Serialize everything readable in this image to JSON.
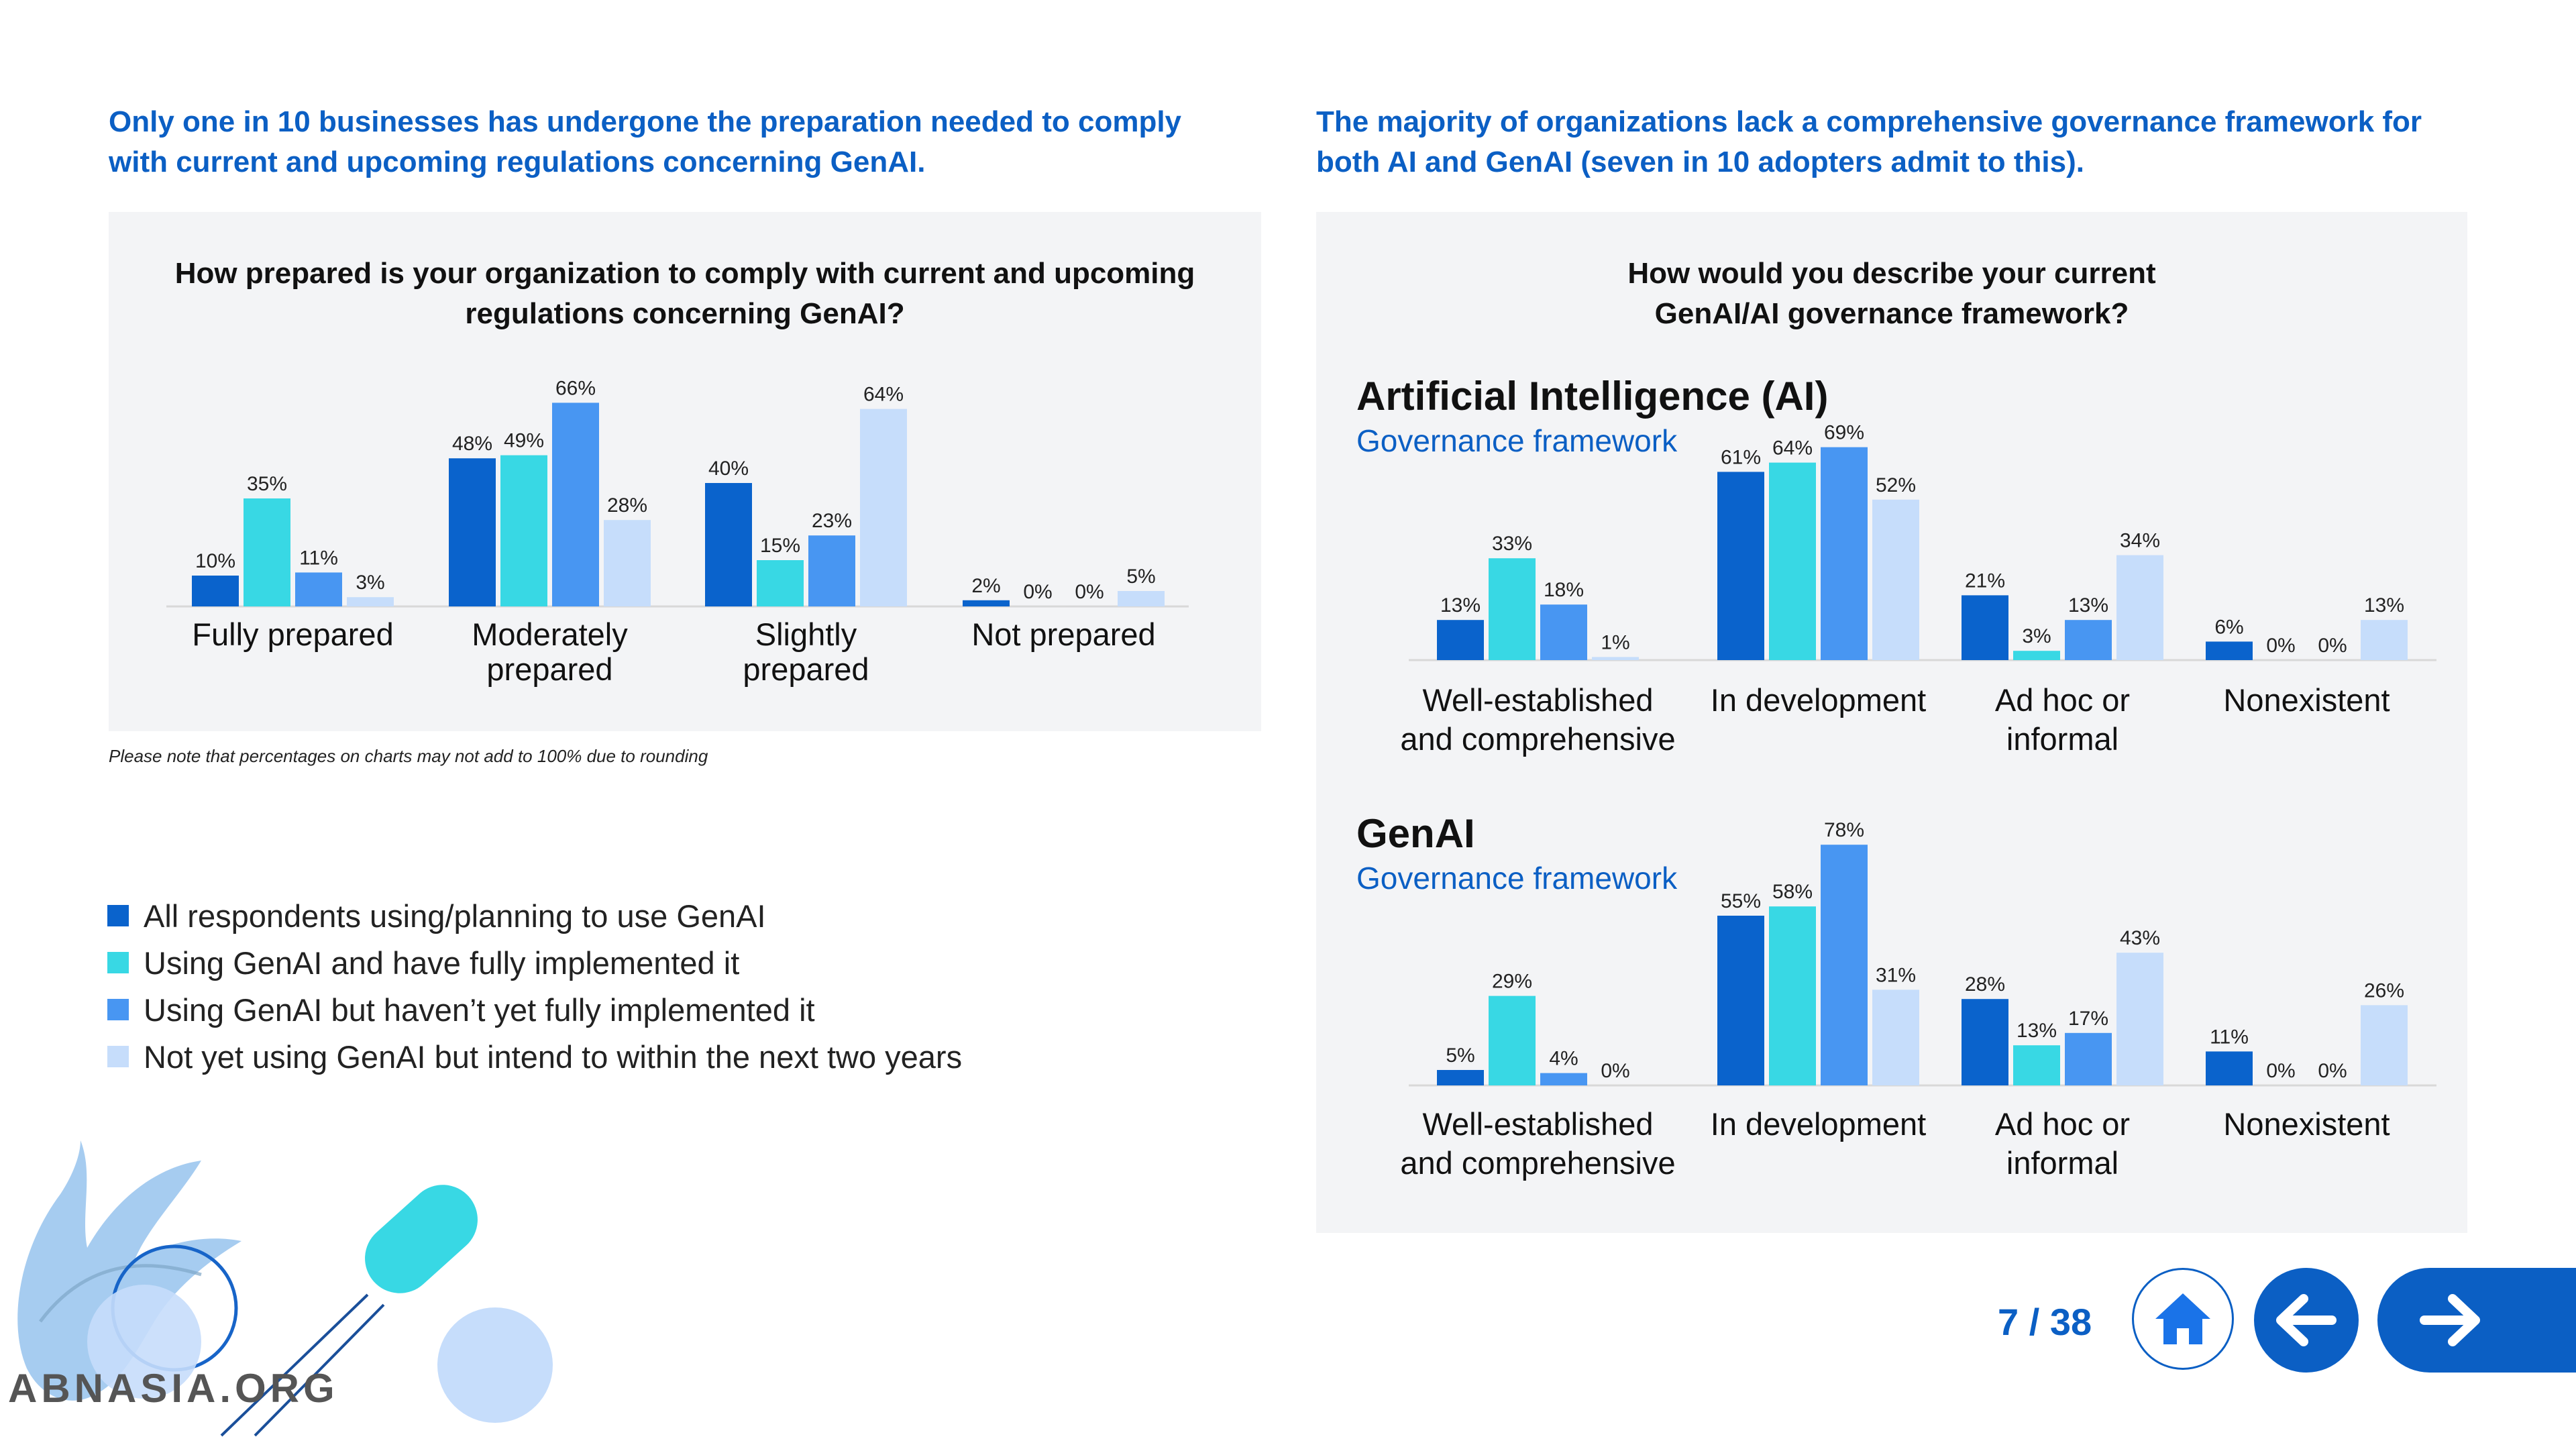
{
  "left": {
    "headline": [
      "Only one in 10 businesses has undergone the preparation needed to comply",
      "with current and upcoming regulations concerning GenAI."
    ],
    "question": [
      "How prepared is your organization to comply with current and upcoming",
      "regulations concerning GenAI?"
    ],
    "note": "Please note that percentages on charts may not add to 100% due to rounding"
  },
  "right": {
    "headline": [
      "The majority of organizations lack a comprehensive governance framework for",
      "both AI and GenAI (seven in 10 adopters admit to this)."
    ],
    "question": [
      "How would you describe your current",
      "GenAI/AI governance framework?"
    ],
    "sections": [
      {
        "title": "Artificial Intelligence (AI)",
        "subtitle": "Governance framework"
      },
      {
        "title": "GenAI",
        "subtitle": "Governance framework"
      }
    ]
  },
  "legend": [
    {
      "label": "All respondents using/planning to use GenAI",
      "color": "#0a63cc"
    },
    {
      "label": "Using GenAI and have fully implemented it",
      "color": "#38d8e4"
    },
    {
      "label": "Using GenAI but haven’t yet fully implemented it",
      "color": "#4896f2"
    },
    {
      "label": "Not yet using GenAI but intend to within the next two years",
      "color": "#c6ddfb"
    }
  ],
  "colors": [
    "#0a63cc",
    "#38d8e4",
    "#4896f2",
    "#c6ddfb"
  ],
  "chart_data": [
    {
      "type": "bar",
      "categories": [
        [
          "Fully prepared"
        ],
        [
          "Moderately",
          "prepared"
        ],
        [
          "Slightly",
          "prepared"
        ],
        [
          "Not prepared"
        ]
      ],
      "series": [
        {
          "values": [
            10,
            48,
            40,
            2
          ]
        },
        {
          "values": [
            35,
            49,
            15,
            0
          ]
        },
        {
          "values": [
            11,
            66,
            23,
            0
          ]
        },
        {
          "values": [
            3,
            28,
            64,
            5
          ]
        }
      ],
      "ylim": [
        0,
        66
      ]
    },
    {
      "type": "bar",
      "categories": [
        [
          "Well-established",
          "and comprehensive"
        ],
        [
          "In development"
        ],
        [
          "Ad hoc or",
          "informal"
        ],
        [
          "Nonexistent"
        ]
      ],
      "series": [
        {
          "values": [
            13,
            61,
            21,
            6
          ]
        },
        {
          "values": [
            33,
            64,
            3,
            0
          ]
        },
        {
          "values": [
            18,
            69,
            13,
            0
          ]
        },
        {
          "values": [
            1,
            52,
            34,
            13
          ]
        }
      ],
      "ylim": [
        0,
        69
      ]
    },
    {
      "type": "bar",
      "categories": [
        [
          "Well-established",
          "and comprehensive"
        ],
        [
          "In development"
        ],
        [
          "Ad hoc or",
          "informal"
        ],
        [
          "Nonexistent"
        ]
      ],
      "series": [
        {
          "values": [
            5,
            55,
            28,
            11
          ]
        },
        {
          "values": [
            29,
            58,
            13,
            0
          ]
        },
        {
          "values": [
            4,
            78,
            17,
            0
          ]
        },
        {
          "values": [
            0,
            31,
            43,
            26
          ]
        }
      ],
      "ylim": [
        0,
        78
      ]
    }
  ],
  "pagination": {
    "label": "7 / 38"
  },
  "watermark": "ABNASIA.ORG",
  "icons": {
    "home": "home-icon",
    "prev": "arrow-left-icon",
    "next": "arrow-right-icon"
  }
}
